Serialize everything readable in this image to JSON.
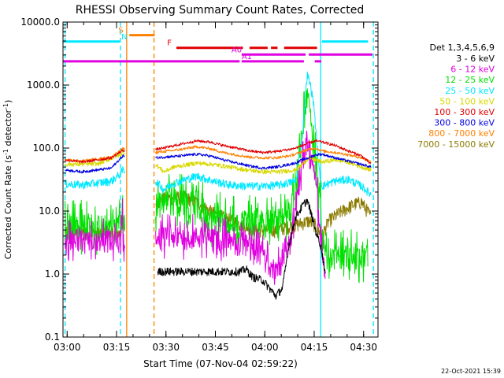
{
  "chart_data": {
    "type": "line",
    "title": "RHESSI Observing Summary Count Rates, Corrected",
    "xlabel": "Start Time (07-Nov-04 02:59:22)",
    "ylabel_main": "Corrected Count Rate (s",
    "ylabel_sup1": "-1",
    "ylabel_mid": " detector",
    "ylabel_sup2": "-1",
    "ylabel_end": ")",
    "footer": "22-Oct-2021 15:39",
    "x_range_minutes": [
      -0.63,
      95
    ],
    "y_range": [
      0.1,
      10000
    ],
    "y_scale": "log",
    "x_ticks": [
      {
        "m": 0.63,
        "label": "03:00"
      },
      {
        "m": 15.63,
        "label": "03:15"
      },
      {
        "m": 30.63,
        "label": "03:30"
      },
      {
        "m": 45.63,
        "label": "03:45"
      },
      {
        "m": 60.63,
        "label": "04:00"
      },
      {
        "m": 75.63,
        "label": "04:15"
      },
      {
        "m": 90.63,
        "label": "04:30"
      }
    ],
    "y_ticks": [
      {
        "v": 10000,
        "label": "10000.0"
      },
      {
        "v": 1000,
        "label": "1000.0"
      },
      {
        "v": 100,
        "label": "100.0"
      },
      {
        "v": 10,
        "label": "10.0"
      },
      {
        "v": 1,
        "label": "1.0"
      },
      {
        "v": 0.1,
        "label": "0.1"
      }
    ],
    "legend": {
      "header": "Det 1,3,4,5,6,9",
      "placement": "right",
      "entries": [
        {
          "label": "3 - 6 keV",
          "color": "#000000"
        },
        {
          "label": "6 - 12 keV",
          "color": "#e000e0"
        },
        {
          "label": "12 - 25 keV",
          "color": "#00e000"
        },
        {
          "label": "25 - 50 keV",
          "color": "#00e8ff"
        },
        {
          "label": "50 - 100 keV",
          "color": "#d8d800"
        },
        {
          "label": "100 - 300 keV",
          "color": "#e00000"
        },
        {
          "label": "300 - 800 keV",
          "color": "#0000e0"
        },
        {
          "label": "800 - 7000 keV",
          "color": "#ff8000"
        },
        {
          "label": "7000 - 15000 keV",
          "color": "#8b7a00"
        }
      ]
    },
    "state_bars": [
      {
        "label": "S",
        "color": "#ff8000",
        "y": 6200,
        "segments": [
          [
            19.5,
            27.2
          ]
        ],
        "label_at": 16.2
      },
      {
        "label": "N",
        "color": "#00e8ff",
        "y": 4900,
        "segments": [
          [
            -0.6,
            16.6
          ],
          [
            78.0,
            92.0
          ]
        ],
        "label_at": 17.1
      },
      {
        "label": "F",
        "color": "#e00000",
        "y": 3900,
        "segments": [
          [
            33.8,
            54.0
          ],
          [
            56.0,
            61.5
          ],
          [
            62.5,
            64.5
          ],
          [
            66.5,
            76.5
          ]
        ],
        "label_at": 31.0
      },
      {
        "label": "A0",
        "color": "#e000e0",
        "y": 3050,
        "segments": [
          [
            53.6,
            73.0
          ],
          [
            74.0,
            93.3
          ]
        ],
        "label_at": 50.5
      },
      {
        "label": "A1",
        "color": "#e000e0",
        "y": 2380,
        "segments": [
          [
            -0.6,
            53.0
          ],
          [
            53.6,
            72.5
          ],
          [
            75.8,
            77.8
          ]
        ],
        "label_at": 53.6
      }
    ],
    "vlines": [
      {
        "m": 0.0,
        "color": "#00e8ff",
        "style": "dash"
      },
      {
        "m": 16.8,
        "color": "#00e8ff",
        "style": "dash"
      },
      {
        "m": 93.6,
        "color": "#00e8ff",
        "style": "dash"
      },
      {
        "m": 77.6,
        "color": "#00e8ff",
        "style": "solid"
      },
      {
        "m": 18.7,
        "color": "#ff8000",
        "style": "solid"
      },
      {
        "m": 27.0,
        "color": "#ff8000",
        "style": "dash"
      }
    ],
    "series": [
      {
        "name": "7000 - 15000 keV",
        "color": "#8b7a00",
        "noise": 0.25,
        "points": [
          [
            0,
            4.5
          ],
          [
            17,
            4.5
          ],
          [
            17.2,
            8
          ],
          [
            17.6,
            5
          ],
          [
            27.5,
            13
          ],
          [
            30,
            16
          ],
          [
            36,
            17
          ],
          [
            40,
            14
          ],
          [
            44,
            10
          ],
          [
            48,
            8
          ],
          [
            54,
            6
          ],
          [
            58,
            5
          ],
          [
            64,
            5
          ],
          [
            70,
            6
          ],
          [
            74,
            7
          ],
          [
            76,
            6
          ],
          [
            78,
            4
          ],
          [
            80,
            7
          ],
          [
            84,
            10
          ],
          [
            88,
            13
          ],
          [
            90,
            14
          ],
          [
            93,
            8
          ]
        ]
      },
      {
        "name": "12 - 25 keV",
        "color": "#00e000",
        "noise": 0.45,
        "oscillate": 0.8,
        "points": [
          [
            0,
            6
          ],
          [
            17,
            6
          ],
          [
            17.6,
            9
          ],
          [
            27.5,
            13
          ],
          [
            30,
            15
          ],
          [
            40,
            15
          ],
          [
            44,
            8
          ],
          [
            52,
            7
          ],
          [
            56,
            7
          ],
          [
            62,
            7.5
          ],
          [
            68,
            8
          ],
          [
            70,
            25
          ],
          [
            72,
            200
          ],
          [
            73.5,
            700
          ],
          [
            74.5,
            400
          ],
          [
            75.5,
            100
          ],
          [
            76.5,
            50
          ],
          [
            77.5,
            15
          ],
          [
            78,
            5
          ],
          [
            79,
            2
          ],
          [
            84,
            2
          ],
          [
            92,
            2
          ]
        ]
      },
      {
        "name": "6 - 12 keV",
        "color": "#e000e0",
        "noise": 0.4,
        "oscillate": 0.6,
        "points": [
          [
            0,
            3.5
          ],
          [
            17,
            3.5
          ],
          [
            17.4,
            13
          ],
          [
            17.6,
            3.5
          ],
          [
            27.5,
            4
          ],
          [
            40,
            4
          ],
          [
            44,
            3.8
          ],
          [
            50,
            3.5
          ],
          [
            56,
            3
          ],
          [
            60,
            2
          ],
          [
            62,
            1.5
          ],
          [
            64,
            1.1
          ],
          [
            66,
            1.5
          ],
          [
            68,
            3
          ],
          [
            70,
            10
          ],
          [
            72,
            60
          ],
          [
            73.5,
            150
          ],
          [
            75,
            70
          ],
          [
            76.5,
            20
          ],
          [
            77.5,
            5
          ],
          [
            78.5,
            1.5
          ],
          [
            79,
            1
          ]
        ]
      },
      {
        "name": "3 - 6 keV",
        "color": "#000000",
        "noise": 0.15,
        "points": [
          [
            28,
            1.1
          ],
          [
            37,
            1.1
          ],
          [
            40,
            1.1
          ],
          [
            48,
            1.1
          ],
          [
            50,
            1.1
          ],
          [
            53,
            1.1
          ],
          [
            55,
            1.2
          ],
          [
            57,
            0.9
          ],
          [
            60,
            0.8
          ],
          [
            62,
            0.6
          ],
          [
            64,
            0.45
          ],
          [
            66,
            0.6
          ],
          [
            68,
            3
          ],
          [
            70,
            8
          ],
          [
            72,
            12
          ],
          [
            73.5,
            15
          ],
          [
            75,
            8
          ],
          [
            76,
            5
          ],
          [
            77.5,
            3
          ],
          [
            78.5,
            1.5
          ],
          [
            79,
            1
          ]
        ]
      },
      {
        "name": "25 - 50 keV",
        "color": "#00e8ff",
        "noise": 0.15,
        "points": [
          [
            0,
            27
          ],
          [
            5,
            26
          ],
          [
            10,
            28
          ],
          [
            14,
            30
          ],
          [
            17,
            40
          ],
          [
            17.5,
            45
          ],
          [
            27.5,
            30
          ],
          [
            30,
            22
          ],
          [
            33,
            28
          ],
          [
            40,
            36
          ],
          [
            45,
            30
          ],
          [
            50,
            26
          ],
          [
            55,
            25
          ],
          [
            60,
            25
          ],
          [
            65,
            26
          ],
          [
            70,
            30
          ],
          [
            72,
            150
          ],
          [
            73.5,
            1500
          ],
          [
            74.5,
            1000
          ],
          [
            75.5,
            500
          ],
          [
            77,
            50
          ],
          [
            78,
            25
          ],
          [
            82,
            30
          ],
          [
            86,
            32
          ],
          [
            90,
            25
          ],
          [
            93,
            18
          ]
        ]
      },
      {
        "name": "50 - 100 keV",
        "color": "#d8d800",
        "noise": 0.08,
        "points": [
          [
            0,
            55
          ],
          [
            10,
            56
          ],
          [
            17,
            80
          ],
          [
            17.5,
            85
          ],
          [
            27.5,
            55
          ],
          [
            30,
            42
          ],
          [
            33,
            50
          ],
          [
            40,
            58
          ],
          [
            45,
            55
          ],
          [
            50,
            50
          ],
          [
            55,
            45
          ],
          [
            60,
            42
          ],
          [
            65,
            42
          ],
          [
            70,
            45
          ],
          [
            72,
            55
          ],
          [
            74,
            70
          ],
          [
            76,
            65
          ],
          [
            78,
            60
          ],
          [
            82,
            65
          ],
          [
            86,
            60
          ],
          [
            90,
            50
          ],
          [
            93,
            45
          ]
        ]
      },
      {
        "name": "300 - 800 keV",
        "color": "#0000e0",
        "noise": 0.05,
        "points": [
          [
            0,
            45
          ],
          [
            5,
            42
          ],
          [
            10,
            45
          ],
          [
            14,
            48
          ],
          [
            17,
            70
          ],
          [
            17.5,
            75
          ],
          [
            27.5,
            70
          ],
          [
            30,
            72
          ],
          [
            35,
            75
          ],
          [
            40,
            80
          ],
          [
            44,
            75
          ],
          [
            48,
            65
          ],
          [
            52,
            58
          ],
          [
            56,
            52
          ],
          [
            60,
            48
          ],
          [
            64,
            50
          ],
          [
            68,
            55
          ],
          [
            70,
            58
          ],
          [
            72,
            65
          ],
          [
            74,
            70
          ],
          [
            76,
            78
          ],
          [
            78,
            80
          ],
          [
            82,
            70
          ],
          [
            86,
            62
          ],
          [
            90,
            55
          ],
          [
            93,
            50
          ]
        ]
      },
      {
        "name": "800 - 7000 keV",
        "color": "#ff8000",
        "noise": 0.05,
        "points": [
          [
            0,
            65
          ],
          [
            5,
            62
          ],
          [
            10,
            68
          ],
          [
            14,
            72
          ],
          [
            17,
            92
          ],
          [
            17.5,
            98
          ],
          [
            27.5,
            85
          ],
          [
            30,
            88
          ],
          [
            35,
            95
          ],
          [
            40,
            105
          ],
          [
            44,
            98
          ],
          [
            48,
            85
          ],
          [
            52,
            78
          ],
          [
            56,
            72
          ],
          [
            60,
            70
          ],
          [
            64,
            70
          ],
          [
            68,
            75
          ],
          [
            70,
            80
          ],
          [
            72,
            88
          ],
          [
            74,
            95
          ],
          [
            76,
            100
          ],
          [
            78,
            90
          ],
          [
            82,
            85
          ],
          [
            86,
            78
          ],
          [
            90,
            70
          ],
          [
            93,
            60
          ]
        ]
      },
      {
        "name": "100 - 300 keV",
        "color": "#e00000",
        "noise": 0.05,
        "points": [
          [
            0,
            65
          ],
          [
            5,
            60
          ],
          [
            10,
            65
          ],
          [
            14,
            70
          ],
          [
            17,
            88
          ],
          [
            17.5,
            92
          ],
          [
            27.5,
            95
          ],
          [
            30,
            100
          ],
          [
            35,
            115
          ],
          [
            40,
            130
          ],
          [
            44,
            125
          ],
          [
            48,
            110
          ],
          [
            52,
            100
          ],
          [
            56,
            90
          ],
          [
            60,
            85
          ],
          [
            64,
            88
          ],
          [
            68,
            95
          ],
          [
            70,
            100
          ],
          [
            72,
            110
          ],
          [
            74,
            120
          ],
          [
            76,
            130
          ],
          [
            78,
            125
          ],
          [
            82,
            110
          ],
          [
            86,
            90
          ],
          [
            90,
            75
          ],
          [
            93,
            55
          ]
        ]
      }
    ]
  }
}
